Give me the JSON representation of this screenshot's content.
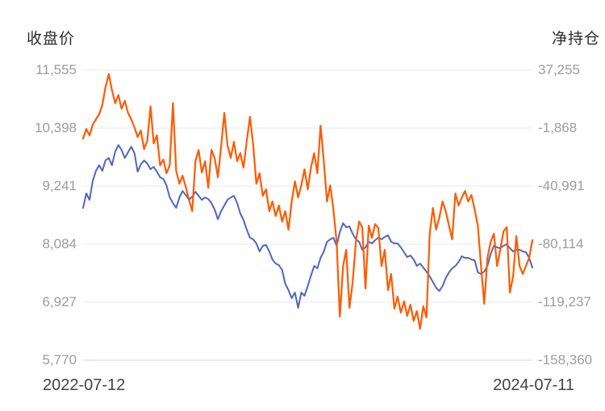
{
  "titles": {
    "left": "收盘价",
    "right": "净持仓"
  },
  "x_axis": {
    "start_label": "2022-07-12",
    "end_label": "2024-07-11"
  },
  "left_axis": {
    "ticks": [
      "11,555",
      "10,398",
      "9,241",
      "8,084",
      "6,927",
      "5,770"
    ],
    "min": 5770,
    "max": 11555
  },
  "right_axis": {
    "ticks": [
      "37,255",
      "-1,868",
      "-40,991",
      "-80,114",
      "-119,237",
      "-158,360"
    ],
    "min": -158360,
    "max": 37255
  },
  "colors": {
    "close_line": "#4e66c2",
    "position_line": "#ff5a00",
    "grid": "#e8eaf1",
    "baseline": "#ccd9ea",
    "tick_text": "#9b9b9b",
    "date_text": "#434343",
    "title_text": "#2b2b2b"
  },
  "chart_data": {
    "type": "line",
    "title": "",
    "xlabel": "",
    "ylabel_left": "收盘价",
    "ylabel_right": "净持仓",
    "x_range": [
      "2022-07-12",
      "2024-07-11"
    ],
    "left_ylim": [
      5770,
      11555
    ],
    "right_ylim": [
      -158360,
      37255
    ],
    "grid": true,
    "legend": "none",
    "series": [
      {
        "name": "收盘价",
        "axis": "left",
        "color": "#4e66c2",
        "values": [
          8807,
          9096,
          8968,
          9337,
          9546,
          9659,
          9546,
          9755,
          9803,
          9659,
          9932,
          10061,
          9964,
          9803,
          9916,
          10028,
          9900,
          9530,
          9675,
          9755,
          9691,
          9578,
          9627,
          9530,
          9418,
          9386,
          9257,
          9016,
          8904,
          8807,
          9016,
          9145,
          9064,
          8968,
          9032,
          9129,
          9048,
          8968,
          9016,
          8984,
          8904,
          8775,
          8582,
          8743,
          8855,
          8968,
          9016,
          9048,
          8904,
          8695,
          8566,
          8373,
          8213,
          8180,
          8100,
          7939,
          8052,
          8068,
          7939,
          7779,
          7698,
          7666,
          7570,
          7297,
          7168,
          7007,
          7120,
          6815,
          7120,
          7056,
          7248,
          7457,
          7650,
          7602,
          7811,
          7939,
          8132,
          8180,
          8213,
          8052,
          8325,
          8502,
          8421,
          8438,
          8293,
          8180,
          8132,
          7972,
          8020,
          8132,
          8100,
          8164,
          8213,
          8180,
          8229,
          8261,
          8132,
          8100,
          8100,
          8020,
          7923,
          7827,
          7859,
          7779,
          7650,
          7698,
          7618,
          7538,
          7441,
          7329,
          7216,
          7152,
          7248,
          7409,
          7522,
          7602,
          7650,
          7730,
          7843,
          7811,
          7811,
          7779,
          7763,
          7522,
          7489,
          7538,
          7650,
          7891,
          8052,
          8020,
          8004,
          8052,
          8084,
          8004,
          7939,
          7972,
          7972,
          7939,
          7923,
          7811,
          7618
        ]
      },
      {
        "name": "净持仓",
        "axis": "right",
        "color": "#ff5a00",
        "values": [
          -8932,
          -2411,
          -6758,
          306,
          4109,
          7369,
          13890,
          25844,
          34538,
          23671,
          14977,
          20410,
          11173,
          16607,
          8456,
          4109,
          -1325,
          -7845,
          -3498,
          -15996,
          -10562,
          12803,
          -12192,
          -6758,
          -26863,
          -23060,
          -32297,
          -26863,
          14977,
          -30667,
          -39361,
          -33927,
          -41534,
          -50228,
          -57836,
          -24146,
          -16539,
          -31754,
          -24146,
          -42078,
          -16539,
          -21973,
          -35014,
          -14366,
          8456,
          -13279,
          -21973,
          -11105,
          -24146,
          -18713,
          -28493,
          -10562,
          5739,
          -13279,
          -39361,
          -32297,
          -47511,
          -43164,
          -57836,
          -51315,
          -61096,
          -54032,
          -64899,
          -57836,
          -70333,
          -51315,
          -37731,
          -48598,
          -40448,
          -29580,
          -43164,
          -28493,
          -18713,
          -32297,
          -238,
          -24146,
          -51315,
          -40448,
          -56749,
          -78484,
          -129018,
          -94785,
          -83918,
          -123041,
          -105653,
          -78484,
          -64899,
          -68703,
          -110000,
          -67616,
          -75767,
          -66530,
          -69246,
          -94785,
          -83918,
          -111086,
          -100219,
          -123584,
          -115433,
          -126301,
          -118694,
          -128474,
          -120867,
          -131735,
          -125214,
          -137168,
          -121954,
          -129561,
          -73050,
          -55662,
          -70333,
          -62183,
          -51315,
          -57836,
          -67616,
          -76854,
          -45881,
          -54032,
          -48598,
          -44251,
          -51315,
          -46968,
          -56749,
          -67616,
          -94785,
          -120324,
          -89351,
          -78484,
          -73050,
          -94785,
          -83918,
          -71420,
          -68703,
          -112716,
          -101849,
          -74680,
          -94785,
          -100219,
          -94785,
          -89351,
          -77397
        ]
      }
    ]
  }
}
